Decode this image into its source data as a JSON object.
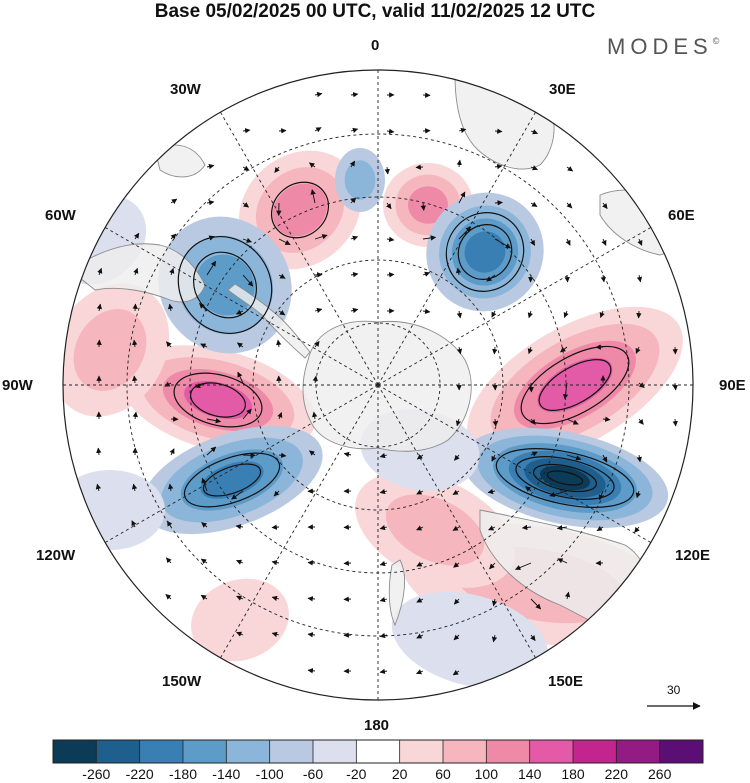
{
  "title": "Base 05/02/2025 00 UTC, valid 11/02/2025 12 UTC",
  "brand": "MODES",
  "brand_mark": "©",
  "map": {
    "projection": "south-polar-stereographic",
    "longitude_labels": [
      "0",
      "30E",
      "60E",
      "90E",
      "120E",
      "150E",
      "180",
      "150W",
      "120W",
      "90W",
      "60W",
      "30W"
    ],
    "graticule": "dashed",
    "land_color": "#eeeeee",
    "coast_color": "#8c8c8c"
  },
  "vector_reference": {
    "label": "30"
  },
  "colorbar": {
    "colors": [
      "#0b3b57",
      "#1f5f8e",
      "#3a7fb4",
      "#5d9bc8",
      "#8cb6d9",
      "#b9c9e1",
      "#dcdfee",
      "#ffffff",
      "#f9d7d9",
      "#f5b6bd",
      "#ef89a8",
      "#e35aa6",
      "#c2258e",
      "#921c84",
      "#5b0e73"
    ],
    "tick_labels": [
      "-260",
      "-220",
      "-180",
      "-140",
      "-100",
      "-60",
      "-20",
      "20",
      "60",
      "100",
      "140",
      "180",
      "220",
      "260"
    ]
  }
}
